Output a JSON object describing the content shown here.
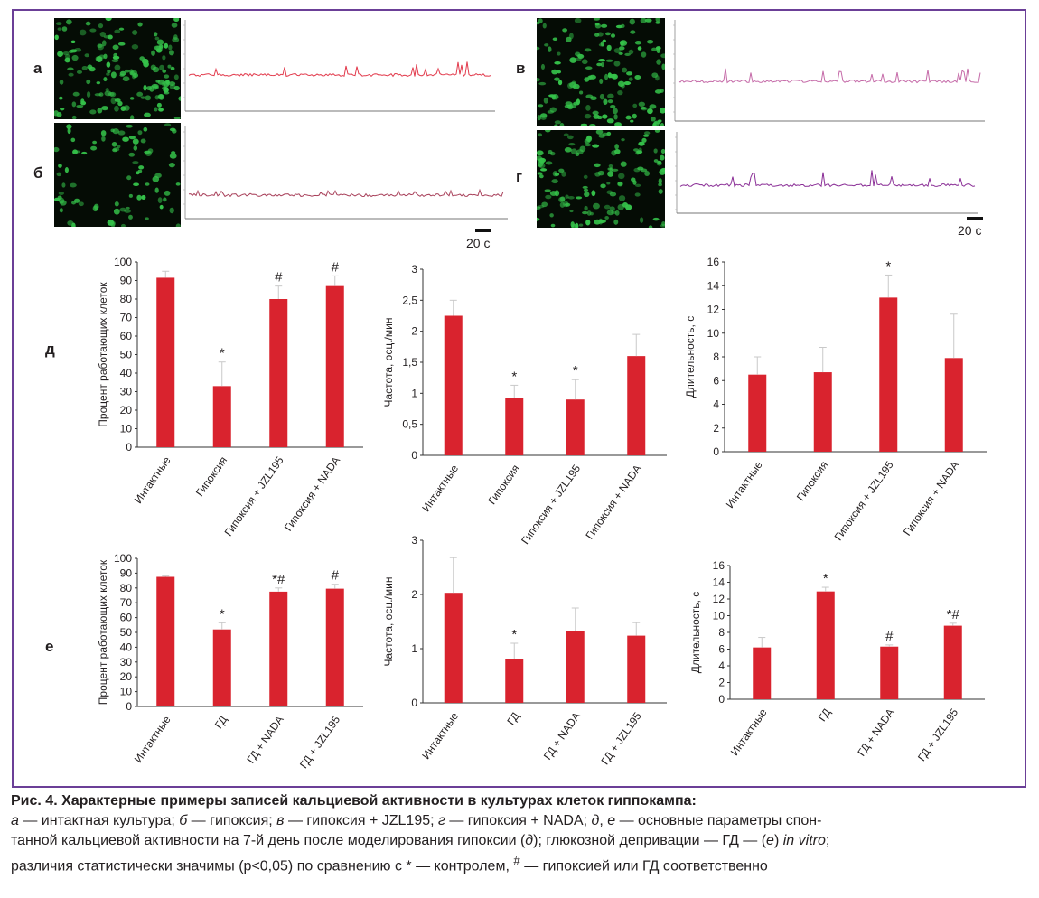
{
  "panels": {
    "a": {
      "letter": "а",
      "trace_color": "#e23a4c"
    },
    "b": {
      "letter": "б",
      "trace_color": "#a8405a"
    },
    "v": {
      "letter": "в",
      "trace_color": "#c56aa8"
    },
    "g": {
      "letter": "г",
      "trace_color": "#8a2e96"
    },
    "d": {
      "letter": "д"
    },
    "e": {
      "letter": "е"
    }
  },
  "scale_bar_label": "20 с",
  "colors": {
    "bar": "#d9232e",
    "frame": "#6b3f97",
    "micro_cell": "#35c24a"
  },
  "chart_data": [
    {
      "id": "d1",
      "type": "bar",
      "ylabel": "Процент работающих клеток",
      "categories": [
        "Интактные",
        "Гипоксия",
        "Гипоксия + JZL195",
        "Гипоксия + NADA"
      ],
      "values": [
        91.5,
        33,
        80,
        87
      ],
      "errors": [
        3.5,
        13,
        7,
        5.5
      ],
      "annotations": [
        "",
        "*",
        "#",
        "#"
      ],
      "ylim": [
        0,
        100
      ],
      "yticks": [
        0,
        10,
        20,
        30,
        40,
        50,
        60,
        70,
        80,
        90,
        100
      ],
      "ytick_labels": [
        "0",
        "10",
        "20",
        "30",
        "40",
        "50",
        "60",
        "70",
        "80",
        "90",
        "100"
      ]
    },
    {
      "id": "d2",
      "type": "bar",
      "ylabel": "Частота, осц./мин",
      "categories": [
        "Интактные",
        "Гипоксия",
        "Гипоксия + JZL195",
        "Гипоксия + NADA"
      ],
      "values": [
        2.25,
        0.93,
        0.9,
        1.6
      ],
      "errors": [
        0.25,
        0.2,
        0.32,
        0.35
      ],
      "annotations": [
        "",
        "*",
        "*",
        ""
      ],
      "ylim": [
        0,
        3
      ],
      "yticks": [
        0,
        0.5,
        1,
        1.5,
        2,
        2.5,
        3
      ],
      "ytick_labels": [
        "0",
        "0,5",
        "1",
        "1,5",
        "2",
        "2,5",
        "3"
      ]
    },
    {
      "id": "d3",
      "type": "bar",
      "ylabel": "Длительность, с",
      "categories": [
        "Интактные",
        "Гипоксия",
        "Гипоксия + JZL195",
        "Гипоксия + NADA"
      ],
      "values": [
        6.5,
        6.7,
        13,
        7.9
      ],
      "errors": [
        1.5,
        2.1,
        1.9,
        3.7
      ],
      "annotations": [
        "",
        "",
        "*",
        ""
      ],
      "ylim": [
        0,
        16
      ],
      "yticks": [
        0,
        2,
        4,
        6,
        8,
        10,
        12,
        14,
        16
      ],
      "ytick_labels": [
        "0",
        "2",
        "4",
        "6",
        "8",
        "10",
        "12",
        "14",
        "16"
      ]
    },
    {
      "id": "e1",
      "type": "bar",
      "ylabel": "Процент работающих клеток",
      "categories": [
        "Интактные",
        "ГД",
        "ГД + NADA",
        "ГД + JZL195"
      ],
      "values": [
        87.5,
        52,
        77.5,
        79.5
      ],
      "errors": [
        0.5,
        4.5,
        2.5,
        3
      ],
      "annotations": [
        "",
        "*",
        "*#",
        "#"
      ],
      "ylim": [
        0,
        100
      ],
      "yticks": [
        0,
        10,
        20,
        30,
        40,
        50,
        60,
        70,
        80,
        90,
        100
      ],
      "ytick_labels": [
        "0",
        "10",
        "20",
        "30",
        "40",
        "50",
        "60",
        "70",
        "80",
        "90",
        "100"
      ]
    },
    {
      "id": "e2",
      "type": "bar",
      "ylabel": "Частота, осц./мин",
      "categories": [
        "Интактные",
        "ГД",
        "ГД + NADA",
        "ГД + JZL195"
      ],
      "values": [
        2.03,
        0.8,
        1.33,
        1.24
      ],
      "errors": [
        0.65,
        0.3,
        0.42,
        0.24
      ],
      "annotations": [
        "",
        "*",
        "",
        ""
      ],
      "ylim": [
        0,
        3
      ],
      "yticks": [
        0,
        1,
        2,
        3
      ],
      "ytick_labels": [
        "0",
        "1",
        "2",
        "3"
      ]
    },
    {
      "id": "e3",
      "type": "bar",
      "ylabel": "Длительность, с",
      "categories": [
        "Интактные",
        "ГД",
        "ГД + NADA",
        "ГД + JZL195"
      ],
      "values": [
        6.2,
        12.9,
        6.3,
        8.8
      ],
      "errors": [
        1.2,
        0.5,
        0.2,
        0.3
      ],
      "annotations": [
        "",
        "*",
        "#",
        "*#"
      ],
      "ylim": [
        0,
        16
      ],
      "yticks": [
        0,
        2,
        4,
        6,
        8,
        10,
        12,
        14,
        16
      ],
      "ytick_labels": [
        "0",
        "2",
        "4",
        "6",
        "8",
        "10",
        "12",
        "14",
        "16"
      ]
    }
  ],
  "caption": {
    "title": "Рис. 4. Характерные примеры записей кальциевой активности в культурах клеток гиппокампа:",
    "a_letter": "а",
    "a_text": " — интактная культура; ",
    "b_letter": "б",
    "b_text": " — гипоксия; ",
    "v_letter": "в",
    "v_text": " — гипоксия + JZL195; ",
    "g_letter": "г",
    "g_text": " — гипоксия + NADA; ",
    "d_letter": "д",
    "de_sep": ", ",
    "e_letter": "е",
    "de_text": " — основные параметры спон-",
    "line2_a": "танной кальциевой активности на 7-й день после моделирования гипоксии (",
    "line2_d": "д",
    "line2_b": "); глюкозной депривации — ГД — (",
    "line2_e": "е",
    "line2_c": ") ",
    "in_vitro": "in vitro",
    "line2_end": ";",
    "line3_a": "различия статистически значимы (p<0,05) по сравнению с * — контролем, ",
    "hash": "#",
    "line3_b": " — гипоксией или ГД соответственно"
  }
}
